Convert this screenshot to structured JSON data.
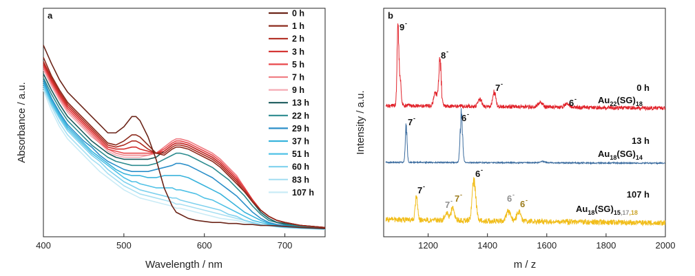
{
  "chart_data": [
    {
      "panel": "a",
      "type": "line",
      "xlabel": "Wavelength / nm",
      "ylabel": "Absorbance / a.u.",
      "xlim": [
        400,
        750
      ],
      "ylim": [
        0,
        1
      ],
      "xticks": [
        400,
        500,
        600,
        700
      ],
      "x": [
        400,
        410,
        420,
        430,
        440,
        450,
        460,
        470,
        480,
        490,
        500,
        510,
        515,
        520,
        530,
        540,
        550,
        560,
        565,
        570,
        580,
        590,
        600,
        610,
        620,
        630,
        640,
        650,
        660,
        670,
        680,
        690,
        700,
        720,
        750
      ],
      "series": [
        {
          "name": "0 h",
          "color": "#6b2418",
          "values": [
            0.92,
            0.83,
            0.75,
            0.69,
            0.65,
            0.61,
            0.57,
            0.53,
            0.49,
            0.49,
            0.52,
            0.57,
            0.57,
            0.55,
            0.47,
            0.36,
            0.22,
            0.13,
            0.1,
            0.09,
            0.07,
            0.06,
            0.055,
            0.05,
            0.05,
            0.045,
            0.045,
            0.04,
            0.04,
            0.035,
            0.035,
            0.033,
            0.03,
            0.025,
            0.02
          ]
        },
        {
          "name": "1 h",
          "color": "#8c2a1c",
          "values": [
            0.86,
            0.77,
            0.7,
            0.64,
            0.6,
            0.56,
            0.52,
            0.48,
            0.44,
            0.43,
            0.45,
            0.48,
            0.48,
            0.47,
            0.43,
            0.39,
            0.38,
            0.41,
            0.42,
            0.42,
            0.41,
            0.39,
            0.37,
            0.35,
            0.32,
            0.28,
            0.24,
            0.2,
            0.15,
            0.11,
            0.08,
            0.06,
            0.05,
            0.035,
            0.025
          ]
        },
        {
          "name": "2 h",
          "color": "#b02b20",
          "values": [
            0.84,
            0.76,
            0.69,
            0.63,
            0.59,
            0.55,
            0.51,
            0.47,
            0.43,
            0.42,
            0.43,
            0.45,
            0.45,
            0.44,
            0.41,
            0.39,
            0.39,
            0.42,
            0.43,
            0.43,
            0.42,
            0.4,
            0.38,
            0.36,
            0.33,
            0.29,
            0.25,
            0.2,
            0.15,
            0.11,
            0.08,
            0.06,
            0.05,
            0.035,
            0.025
          ]
        },
        {
          "name": "3 h",
          "color": "#d22a28",
          "values": [
            0.83,
            0.75,
            0.68,
            0.62,
            0.58,
            0.54,
            0.5,
            0.46,
            0.42,
            0.41,
            0.41,
            0.42,
            0.42,
            0.41,
            0.4,
            0.39,
            0.4,
            0.43,
            0.44,
            0.44,
            0.43,
            0.41,
            0.39,
            0.37,
            0.34,
            0.3,
            0.26,
            0.21,
            0.16,
            0.11,
            0.08,
            0.06,
            0.05,
            0.035,
            0.025
          ]
        },
        {
          "name": "5 h",
          "color": "#e8474a",
          "values": [
            0.82,
            0.74,
            0.67,
            0.61,
            0.57,
            0.53,
            0.49,
            0.45,
            0.41,
            0.4,
            0.39,
            0.39,
            0.39,
            0.39,
            0.39,
            0.39,
            0.41,
            0.44,
            0.45,
            0.45,
            0.44,
            0.42,
            0.4,
            0.38,
            0.35,
            0.31,
            0.27,
            0.22,
            0.16,
            0.11,
            0.08,
            0.06,
            0.05,
            0.035,
            0.025
          ]
        },
        {
          "name": "7 h",
          "color": "#f07f85",
          "values": [
            0.81,
            0.73,
            0.66,
            0.6,
            0.56,
            0.52,
            0.48,
            0.44,
            0.41,
            0.39,
            0.38,
            0.38,
            0.38,
            0.38,
            0.38,
            0.39,
            0.42,
            0.45,
            0.46,
            0.46,
            0.45,
            0.43,
            0.41,
            0.39,
            0.36,
            0.32,
            0.28,
            0.22,
            0.16,
            0.11,
            0.08,
            0.06,
            0.05,
            0.035,
            0.025
          ]
        },
        {
          "name": "9 h",
          "color": "#f5aab3",
          "values": [
            0.8,
            0.72,
            0.65,
            0.59,
            0.55,
            0.51,
            0.47,
            0.44,
            0.4,
            0.38,
            0.37,
            0.37,
            0.37,
            0.37,
            0.38,
            0.39,
            0.42,
            0.45,
            0.46,
            0.46,
            0.45,
            0.43,
            0.41,
            0.39,
            0.36,
            0.32,
            0.28,
            0.22,
            0.16,
            0.11,
            0.08,
            0.06,
            0.05,
            0.035,
            0.025
          ]
        },
        {
          "name": "13 h",
          "color": "#1a5a5c",
          "values": [
            0.78,
            0.7,
            0.63,
            0.57,
            0.53,
            0.49,
            0.45,
            0.42,
            0.39,
            0.37,
            0.36,
            0.36,
            0.36,
            0.36,
            0.36,
            0.37,
            0.4,
            0.43,
            0.44,
            0.44,
            0.43,
            0.41,
            0.39,
            0.37,
            0.34,
            0.3,
            0.26,
            0.21,
            0.15,
            0.1,
            0.07,
            0.05,
            0.045,
            0.035,
            0.025
          ]
        },
        {
          "name": "22 h",
          "color": "#2a8a8e",
          "values": [
            0.76,
            0.68,
            0.61,
            0.55,
            0.51,
            0.47,
            0.43,
            0.4,
            0.37,
            0.35,
            0.34,
            0.33,
            0.33,
            0.33,
            0.33,
            0.34,
            0.36,
            0.38,
            0.39,
            0.39,
            0.38,
            0.36,
            0.34,
            0.32,
            0.29,
            0.26,
            0.22,
            0.18,
            0.13,
            0.09,
            0.06,
            0.05,
            0.04,
            0.03,
            0.022
          ]
        },
        {
          "name": "29 h",
          "color": "#2b8fc9",
          "values": [
            0.75,
            0.66,
            0.59,
            0.53,
            0.49,
            0.45,
            0.42,
            0.38,
            0.35,
            0.33,
            0.31,
            0.3,
            0.3,
            0.3,
            0.3,
            0.31,
            0.32,
            0.33,
            0.34,
            0.34,
            0.33,
            0.31,
            0.29,
            0.27,
            0.24,
            0.21,
            0.18,
            0.14,
            0.1,
            0.07,
            0.05,
            0.04,
            0.035,
            0.028,
            0.02
          ]
        },
        {
          "name": "37 h",
          "color": "#38b3dc",
          "values": [
            0.74,
            0.65,
            0.58,
            0.52,
            0.48,
            0.44,
            0.4,
            0.37,
            0.34,
            0.31,
            0.29,
            0.28,
            0.28,
            0.28,
            0.27,
            0.27,
            0.28,
            0.28,
            0.28,
            0.28,
            0.27,
            0.25,
            0.23,
            0.21,
            0.19,
            0.16,
            0.13,
            0.1,
            0.08,
            0.06,
            0.045,
            0.035,
            0.03,
            0.025,
            0.02
          ]
        },
        {
          "name": "51 h",
          "color": "#4fc1e6",
          "values": [
            0.73,
            0.64,
            0.57,
            0.51,
            0.47,
            0.43,
            0.39,
            0.36,
            0.33,
            0.3,
            0.27,
            0.25,
            0.25,
            0.24,
            0.23,
            0.22,
            0.22,
            0.22,
            0.21,
            0.21,
            0.2,
            0.19,
            0.17,
            0.16,
            0.14,
            0.12,
            0.1,
            0.08,
            0.06,
            0.05,
            0.04,
            0.03,
            0.028,
            0.023,
            0.018
          ]
        },
        {
          "name": "60 h",
          "color": "#7fd1ee",
          "values": [
            0.72,
            0.63,
            0.56,
            0.5,
            0.46,
            0.42,
            0.38,
            0.35,
            0.31,
            0.28,
            0.25,
            0.23,
            0.22,
            0.21,
            0.2,
            0.19,
            0.18,
            0.17,
            0.17,
            0.16,
            0.15,
            0.14,
            0.13,
            0.12,
            0.11,
            0.09,
            0.08,
            0.06,
            0.05,
            0.04,
            0.035,
            0.03,
            0.026,
            0.022,
            0.018
          ]
        },
        {
          "name": "83 h",
          "color": "#a7dff2",
          "values": [
            0.71,
            0.62,
            0.54,
            0.48,
            0.44,
            0.4,
            0.36,
            0.33,
            0.29,
            0.26,
            0.23,
            0.21,
            0.2,
            0.19,
            0.18,
            0.17,
            0.16,
            0.15,
            0.14,
            0.14,
            0.13,
            0.12,
            0.11,
            0.1,
            0.09,
            0.08,
            0.07,
            0.06,
            0.05,
            0.04,
            0.034,
            0.029,
            0.025,
            0.021,
            0.017
          ]
        },
        {
          "name": "107 h",
          "color": "#c9ebf6",
          "values": [
            0.7,
            0.6,
            0.52,
            0.46,
            0.42,
            0.38,
            0.34,
            0.3,
            0.27,
            0.24,
            0.21,
            0.19,
            0.18,
            0.17,
            0.16,
            0.15,
            0.14,
            0.13,
            0.12,
            0.12,
            0.11,
            0.1,
            0.09,
            0.08,
            0.07,
            0.065,
            0.06,
            0.05,
            0.045,
            0.04,
            0.033,
            0.028,
            0.024,
            0.02,
            0.016
          ]
        }
      ]
    },
    {
      "panel": "b",
      "type": "line",
      "xlabel": "m / z",
      "ylabel": "Intensity / a.u.",
      "xlim": [
        1050,
        2000
      ],
      "xticks": [
        1200,
        1400,
        1600,
        1800,
        2000
      ],
      "series": [
        {
          "name": "0 h",
          "formula": "Au22(SG)18",
          "formula_parts": {
            "base": "Au",
            "n": "22",
            "mid": "(SG)",
            "m": "18"
          },
          "color": "#e1222a",
          "baseline": 0.06,
          "noise": 0.025,
          "peaks": [
            {
              "mz": 1098,
              "height": 1.0,
              "width": 3,
              "label": "9",
              "sup": "-"
            },
            {
              "mz": 1105,
              "height": 0.35,
              "width": 4
            },
            {
              "mz": 1240,
              "height": 0.62,
              "width": 4,
              "label": "8",
              "sup": "-"
            },
            {
              "mz": 1225,
              "height": 0.18,
              "width": 6
            },
            {
              "mz": 1423,
              "height": 0.2,
              "width": 5,
              "label": "7",
              "sup": "-"
            },
            {
              "mz": 1375,
              "height": 0.1,
              "width": 6
            },
            {
              "mz": 1578,
              "height": 0.06,
              "width": 8
            },
            {
              "mz": 1668,
              "height": 0.05,
              "width": 8,
              "label": "6",
              "sup": "-"
            }
          ]
        },
        {
          "name": "13 h",
          "formula": "Au18(SG)14",
          "formula_parts": {
            "base": "Au",
            "n": "18",
            "mid": "(SG)",
            "m": "14"
          },
          "color": "#3a6b9e",
          "baseline": 0.03,
          "noise": 0.012,
          "peaks": [
            {
              "mz": 1126,
              "height": 0.75,
              "width": 3,
              "label": "7",
              "sup": "-"
            },
            {
              "mz": 1312,
              "height": 1.0,
              "width": 4,
              "label": "6",
              "sup": "-"
            },
            {
              "mz": 1585,
              "height": 0.03,
              "width": 8
            }
          ]
        },
        {
          "name": "107 h",
          "formula": "Au18(SG)15,17,18",
          "formula_parts": {
            "base": "Au",
            "n": "18",
            "mid": "(SG)",
            "m1": "15",
            "m2": ",17",
            "m3": ",18"
          },
          "color": "#f1bd1a",
          "baseline": 0.15,
          "noise": 0.06,
          "peaks": [
            {
              "mz": 1160,
              "height": 0.55,
              "width": 4,
              "label": "7",
              "sup": "-",
              "labelColor": "#111111"
            },
            {
              "mz": 1262,
              "height": 0.18,
              "width": 6,
              "label": "7",
              "sup": "-",
              "labelColor": "#8f8f8f"
            },
            {
              "mz": 1283,
              "height": 0.28,
              "width": 6,
              "label": "7",
              "sup": "-",
              "labelColor": "#9a7a1a"
            },
            {
              "mz": 1355,
              "height": 1.0,
              "width": 6,
              "label": "6",
              "sup": "-",
              "labelColor": "#111111"
            },
            {
              "mz": 1470,
              "height": 0.25,
              "width": 7,
              "label": "6",
              "sup": "-",
              "labelColor": "#8f8f8f"
            },
            {
              "mz": 1505,
              "height": 0.22,
              "width": 7,
              "label": "6",
              "sup": "-",
              "labelColor": "#9a7a1a"
            }
          ]
        }
      ]
    }
  ]
}
